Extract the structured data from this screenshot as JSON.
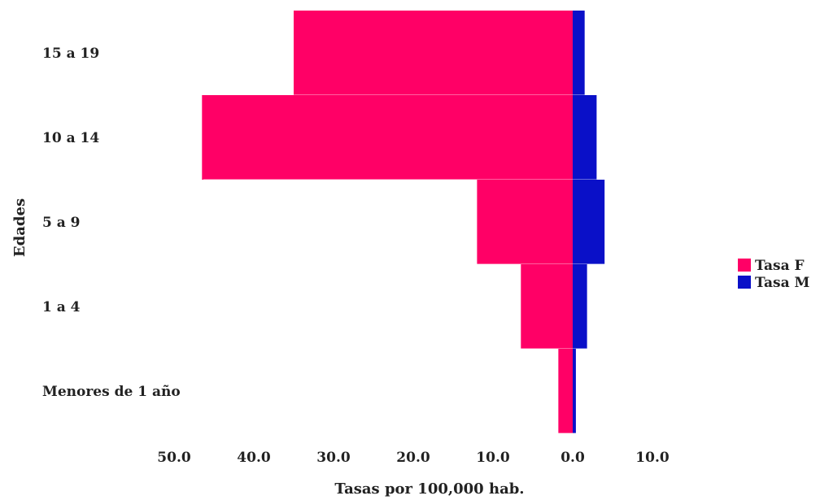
{
  "chart_data": {
    "type": "bar",
    "orientation": "horizontal-population-pyramid",
    "categories": [
      "15 a 19",
      "10 a 14",
      "5  a 9",
      "1 a 4",
      "Menores de 1 año"
    ],
    "series": [
      {
        "name": "Tasa F",
        "color": "#FF0066",
        "direction": "left",
        "values": [
          35.0,
          46.5,
          12.0,
          6.5,
          1.8
        ]
      },
      {
        "name": "Tasa M",
        "color": "#0A10C8",
        "direction": "right",
        "values": [
          1.5,
          3.0,
          4.0,
          1.8,
          0.4
        ]
      }
    ],
    "x_ticks": [
      "50.0",
      "40.0",
      "30.0",
      "20.0",
      "10.0",
      "0.0",
      "10.0"
    ],
    "x_tick_values": [
      -50,
      -40,
      -30,
      -20,
      -10,
      0,
      10
    ],
    "xlim": [
      -50,
      10
    ],
    "xlabel": "Tasas por 100,000 hab.",
    "ylabel": "Edades",
    "legend_position": "right",
    "grid": false
  }
}
